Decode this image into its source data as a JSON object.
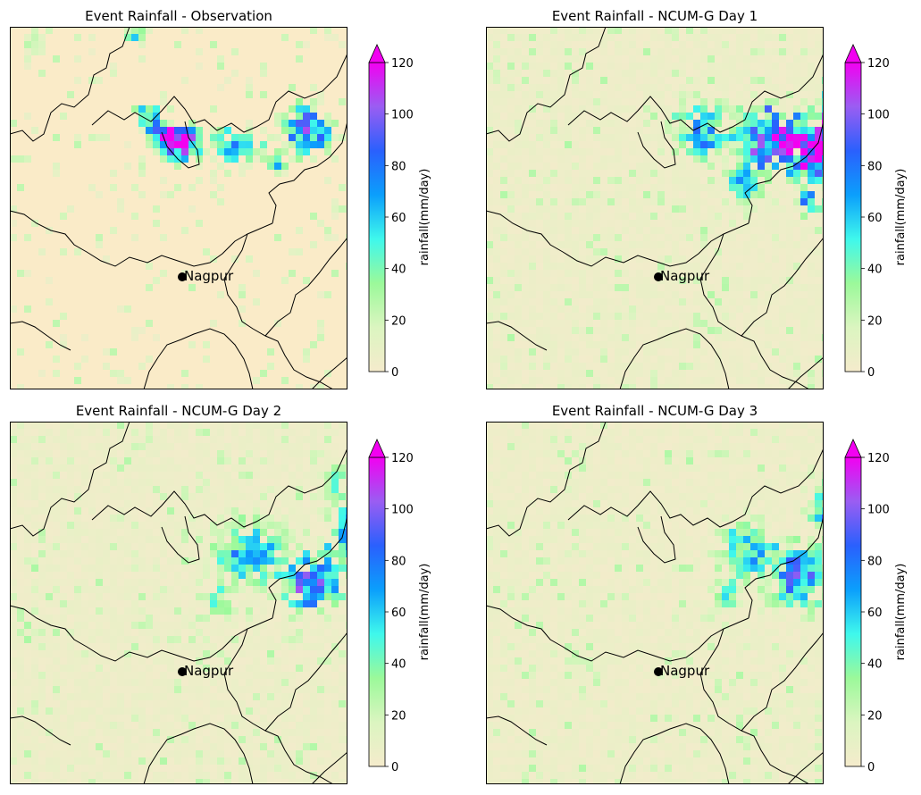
{
  "panels": [
    {
      "title": "Event Rainfall - Observation",
      "seed": 11,
      "type": "obs"
    },
    {
      "title": "Event Rainfall - NCUM-G Day 1",
      "seed": 23,
      "type": "d1"
    },
    {
      "title": "Event Rainfall - NCUM-G Day 2",
      "seed": 37,
      "type": "d2"
    },
    {
      "title": "Event Rainfall - NCUM-G Day 3",
      "seed": 53,
      "type": "d3"
    }
  ],
  "city": {
    "name": "Nagpur"
  },
  "colorbar": {
    "label": "rainfall(mm/day)",
    "min": 0,
    "max": 120,
    "ticks": [
      0,
      20,
      40,
      60,
      80,
      100,
      120
    ],
    "extend": "max",
    "colors": [
      "#f5ebcc",
      "#dbf5c0",
      "#9bf99a",
      "#3ff8ec",
      "#0b9ffc",
      "#2a60fd",
      "#9a5df2",
      "#f201f1"
    ]
  },
  "colors": {
    "background": "#faebc8",
    "border": "#000000",
    "marker": "#000000"
  }
}
